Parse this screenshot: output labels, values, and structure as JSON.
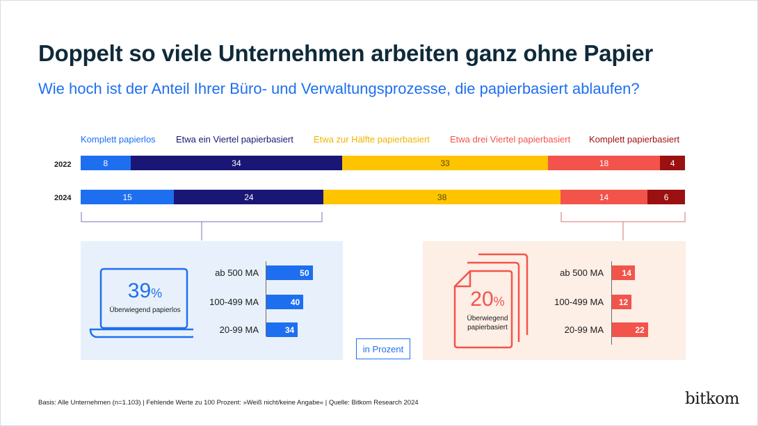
{
  "title": "Doppelt so viele Unternehmen arbeiten ganz ohne Papier",
  "subtitle": "Wie hoch ist der Anteil Ihrer Büro- und Verwaltungsprozesse, die papierbasiert ablaufen?",
  "legend": [
    {
      "label": "Komplett papierlos",
      "color": "#1e6ff0"
    },
    {
      "label": "Etwa ein Viertel papierbasiert",
      "color": "#1a1675"
    },
    {
      "label": "Etwa zur Hälfte papierbasiert",
      "color": "#ffc400"
    },
    {
      "label": "Etwa drei Viertel papierbasiert",
      "color": "#f2544b"
    },
    {
      "label": "Komplett papierbasiert",
      "color": "#9b1010"
    }
  ],
  "chart_data": [
    {
      "type": "bar",
      "orientation": "horizontal-stacked-100",
      "categories": [
        "2022",
        "2024"
      ],
      "series": [
        {
          "name": "Komplett papierlos",
          "values": [
            8,
            15
          ]
        },
        {
          "name": "Etwa ein Viertel papierbasiert",
          "values": [
            34,
            24
          ]
        },
        {
          "name": "Etwa zur Hälfte papierbasiert",
          "values": [
            33,
            38
          ]
        },
        {
          "name": "Etwa drei Viertel papierbasiert",
          "values": [
            18,
            14
          ]
        },
        {
          "name": "Komplett papierbasiert",
          "values": [
            4,
            6
          ]
        }
      ],
      "legend_position": "top"
    },
    {
      "type": "bar",
      "orientation": "horizontal",
      "categories": [
        "ab 500 MA",
        "100-499 MA",
        "20-99 MA"
      ],
      "values": [
        50,
        40,
        34
      ],
      "highlight_value": "39",
      "highlight_unit": "%",
      "highlight_caption": "Überwiegend papierlos",
      "color": "#1e6ff0"
    },
    {
      "type": "bar",
      "orientation": "horizontal",
      "categories": [
        "ab 500 MA",
        "100-499 MA",
        "20-99 MA"
      ],
      "values": [
        14,
        12,
        22
      ],
      "highlight_value": "20",
      "highlight_unit": "%",
      "highlight_caption_lines": [
        "Überwiegend",
        "papierbasiert"
      ],
      "color": "#f2544b"
    }
  ],
  "unit_label": "in Prozent",
  "source": "Basis: Alle Unternehmen (n=1.103) | Fehlende Werte zu 100 Prozent: »Weiß nicht/keine Angabe« | Quelle: Bitkom Research 2024",
  "logo_text": "bitkom",
  "colors": {
    "title": "#0f2a3a",
    "accent_blue": "#1e6ff0",
    "panel_blue": "#e8f1fb",
    "panel_red": "#fdeee6"
  }
}
